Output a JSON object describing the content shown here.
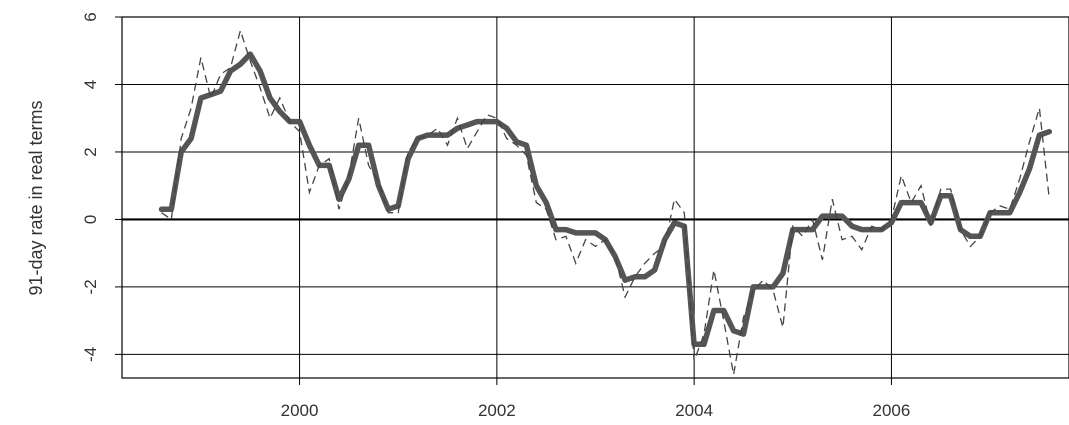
{
  "chart_data": {
    "type": "line",
    "title": "",
    "xlabel": "",
    "ylabel": "91-day rate in real terms",
    "xlim": [
      1998.2,
      2007.8
    ],
    "ylim": [
      -4.7,
      6.0
    ],
    "x_ticks": [
      2000,
      2002,
      2004,
      2006
    ],
    "x_tick_labels": [
      "2000",
      "2002",
      "2004",
      "2006"
    ],
    "y_ticks": [
      -4,
      -2,
      0,
      2,
      4,
      6
    ],
    "y_tick_labels": [
      "-4",
      "-2",
      "0",
      "2",
      "4",
      "6"
    ],
    "grid": true,
    "reference_line_y": 0,
    "legend": "none",
    "colors": {
      "smoothed": "#555555",
      "raw": "#444444",
      "grid": "#000000",
      "zero_line": "#000000"
    },
    "series": [
      {
        "style": "solid-thick",
        "x": [
          1998.6,
          1998.7,
          1998.8,
          1998.9,
          1999.0,
          1999.1,
          1999.2,
          1999.3,
          1999.4,
          1999.5,
          1999.6,
          1999.7,
          1999.8,
          1999.9,
          2000.0,
          2000.1,
          2000.2,
          2000.3,
          2000.4,
          2000.5,
          2000.6,
          2000.7,
          2000.8,
          2000.9,
          2001.0,
          2001.1,
          2001.2,
          2001.3,
          2001.4,
          2001.5,
          2001.6,
          2001.7,
          2001.8,
          2001.9,
          2002.0,
          2002.1,
          2002.2,
          2002.3,
          2002.4,
          2002.5,
          2002.6,
          2002.7,
          2002.8,
          2002.9,
          2003.0,
          2003.1,
          2003.2,
          2003.3,
          2003.4,
          2003.5,
          2003.6,
          2003.7,
          2003.8,
          2003.9,
          2004.0,
          2004.1,
          2004.2,
          2004.3,
          2004.4,
          2004.5,
          2004.6,
          2004.7,
          2004.8,
          2004.9,
          2005.0,
          2005.1,
          2005.2,
          2005.3,
          2005.4,
          2005.5,
          2005.6,
          2005.7,
          2005.8,
          2005.9,
          2006.0,
          2006.1,
          2006.2,
          2006.3,
          2006.4,
          2006.5,
          2006.6,
          2006.7,
          2006.8,
          2006.9,
          2007.0,
          2007.1,
          2007.2,
          2007.3,
          2007.4,
          2007.5,
          2007.6
        ],
        "values": [
          0.3,
          0.3,
          2.0,
          2.4,
          3.6,
          3.7,
          3.8,
          4.4,
          4.6,
          4.9,
          4.4,
          3.6,
          3.2,
          2.9,
          2.9,
          2.2,
          1.6,
          1.6,
          0.6,
          1.2,
          2.2,
          2.2,
          1.0,
          0.3,
          0.4,
          1.8,
          2.4,
          2.5,
          2.5,
          2.5,
          2.7,
          2.8,
          2.9,
          2.9,
          2.9,
          2.7,
          2.3,
          2.2,
          1.0,
          0.5,
          -0.3,
          -0.3,
          -0.4,
          -0.4,
          -0.4,
          -0.6,
          -1.1,
          -1.8,
          -1.7,
          -1.7,
          -1.5,
          -0.6,
          -0.1,
          -0.2,
          -3.7,
          -3.7,
          -2.7,
          -2.7,
          -3.3,
          -3.4,
          -2.0,
          -2.0,
          -2.0,
          -1.6,
          -0.3,
          -0.3,
          -0.3,
          0.1,
          0.1,
          0.1,
          -0.2,
          -0.3,
          -0.3,
          -0.3,
          -0.1,
          0.5,
          0.5,
          0.5,
          -0.1,
          0.7,
          0.7,
          -0.3,
          -0.5,
          -0.5,
          0.2,
          0.2,
          0.2,
          0.8,
          1.5,
          2.5,
          2.6
        ]
      },
      {
        "style": "dashed-thin",
        "x": [
          1998.6,
          1998.7,
          1998.8,
          1998.9,
          1999.0,
          1999.1,
          1999.2,
          1999.3,
          1999.4,
          1999.5,
          1999.6,
          1999.7,
          1999.8,
          1999.9,
          2000.0,
          2000.1,
          2000.2,
          2000.3,
          2000.4,
          2000.5,
          2000.6,
          2000.7,
          2000.8,
          2000.9,
          2001.0,
          2001.1,
          2001.2,
          2001.3,
          2001.4,
          2001.5,
          2001.6,
          2001.7,
          2001.8,
          2001.9,
          2002.0,
          2002.1,
          2002.2,
          2002.3,
          2002.4,
          2002.5,
          2002.6,
          2002.7,
          2002.8,
          2002.9,
          2003.0,
          2003.1,
          2003.2,
          2003.3,
          2003.4,
          2003.5,
          2003.6,
          2003.7,
          2003.8,
          2003.9,
          2004.0,
          2004.1,
          2004.2,
          2004.3,
          2004.4,
          2004.5,
          2004.6,
          2004.7,
          2004.8,
          2004.9,
          2005.0,
          2005.1,
          2005.2,
          2005.3,
          2005.4,
          2005.5,
          2005.6,
          2005.7,
          2005.8,
          2005.9,
          2006.0,
          2006.1,
          2006.2,
          2006.3,
          2006.4,
          2006.5,
          2006.6,
          2006.7,
          2006.8,
          2006.9,
          2007.0,
          2007.1,
          2007.2,
          2007.3,
          2007.4,
          2007.5,
          2007.6
        ],
        "values": [
          0.2,
          0.0,
          2.4,
          3.3,
          4.8,
          3.6,
          4.3,
          4.5,
          5.6,
          4.7,
          3.9,
          3.0,
          3.6,
          2.9,
          2.6,
          0.8,
          1.6,
          1.8,
          0.3,
          1.3,
          3.0,
          1.6,
          1.1,
          0.2,
          0.2,
          2.0,
          2.4,
          2.5,
          2.7,
          2.2,
          3.0,
          2.1,
          2.6,
          3.1,
          3.0,
          2.4,
          2.2,
          1.9,
          0.5,
          0.3,
          -0.6,
          -0.5,
          -1.3,
          -0.6,
          -0.8,
          -0.6,
          -1.1,
          -2.3,
          -1.7,
          -1.3,
          -1.0,
          -0.8,
          0.6,
          0.2,
          -4.2,
          -3.4,
          -1.5,
          -3.0,
          -4.6,
          -2.9,
          -2.1,
          -1.8,
          -2.1,
          -3.2,
          -0.2,
          -0.5,
          0.0,
          -1.2,
          0.6,
          -0.6,
          -0.5,
          -0.9,
          -0.2,
          -0.3,
          0.0,
          1.3,
          0.5,
          1.0,
          -0.2,
          0.9,
          0.9,
          -0.3,
          -0.8,
          -0.5,
          0.2,
          0.4,
          0.3,
          1.2,
          2.3,
          3.3,
          0.6
        ]
      }
    ]
  }
}
